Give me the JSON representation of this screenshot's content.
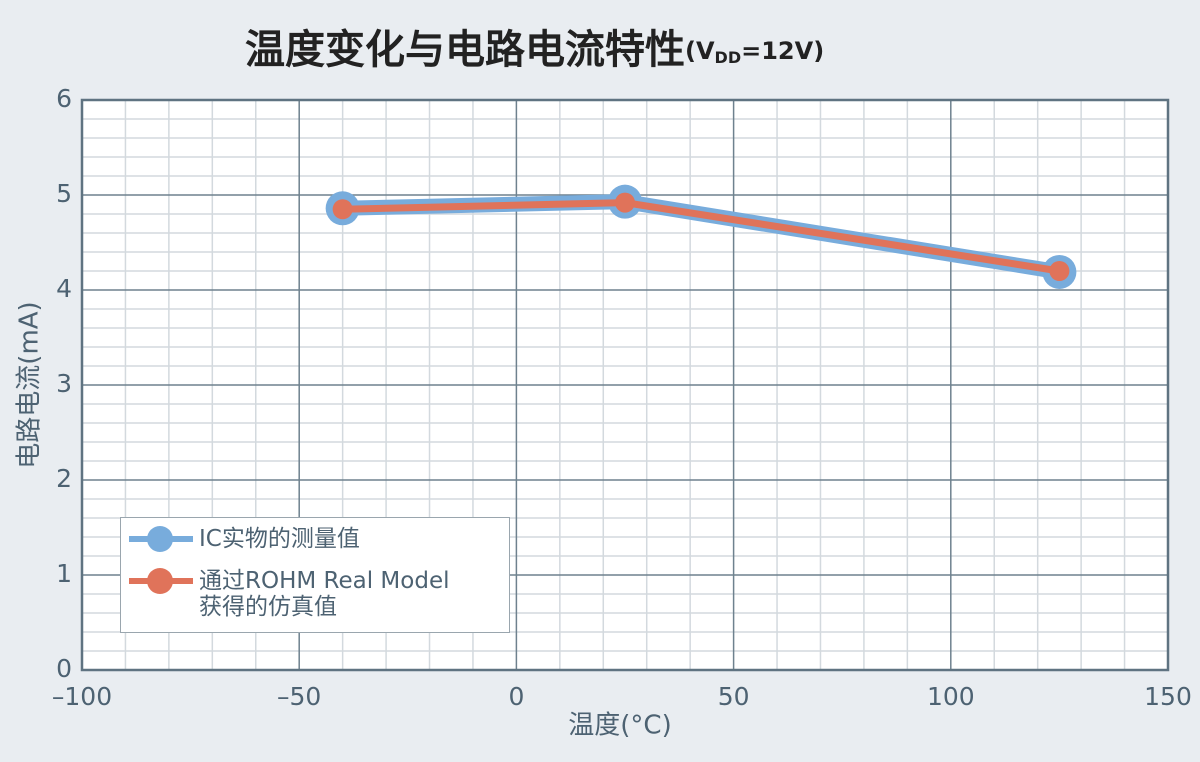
{
  "chart_data": {
    "type": "line",
    "title": "温度变化与电路电流特性",
    "title_condition": {
      "prefix": "(V",
      "subscript": "DD",
      "suffix": "=12V)"
    },
    "x_label": "温度(°C)",
    "y_label": "电路电流(mA)",
    "x": [
      -40,
      25,
      125
    ],
    "series": [
      {
        "name": "IC实物的测量值",
        "color": "#78acdc",
        "values": [
          4.86,
          4.93,
          4.19
        ]
      },
      {
        "name": "通过ROHM Real Model\n获得的仿真值",
        "color": "#e0735a",
        "values": [
          4.85,
          4.92,
          4.2
        ]
      }
    ],
    "xlim": [
      -100,
      150
    ],
    "xticks": [
      {
        "value": -100,
        "label": "–100"
      },
      {
        "value": -50,
        "label": "–50"
      },
      0,
      50,
      100,
      150
    ],
    "ylim": [
      0,
      6
    ],
    "yticks": [
      0,
      1,
      2,
      3,
      4,
      5,
      6
    ],
    "grid": true,
    "minor_x_divisions": 5,
    "minor_y_divisions": 5,
    "legend": "lower left"
  }
}
